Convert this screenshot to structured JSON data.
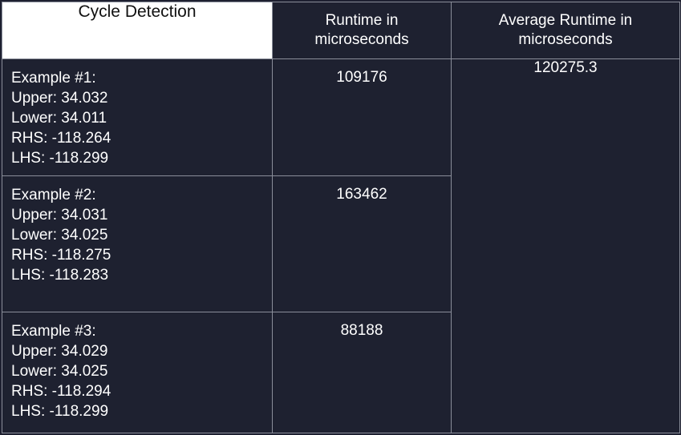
{
  "header": {
    "title": "Cycle Detection",
    "runtime_line1": "Runtime in",
    "runtime_line2": "microseconds",
    "average_line1": "Average Runtime in",
    "average_line2": "microseconds"
  },
  "examples": [
    {
      "label": "Example #1:",
      "upper": "Upper: 34.032",
      "lower": "Lower: 34.011",
      "rhs": "RHS: -118.264",
      "lhs": "LHS: -118.299",
      "runtime": "109176"
    },
    {
      "label": "Example #2:",
      "upper": "Upper: 34.031",
      "lower": "Lower: 34.025",
      "rhs": "RHS: -118.275",
      "lhs": "LHS: -118.283",
      "runtime": "163462"
    },
    {
      "label": "Example #3:",
      "upper": "Upper: 34.029",
      "lower": "Lower: 34.025",
      "rhs": "RHS: -118.294",
      "lhs": "LHS: -118.299",
      "runtime": "88188"
    }
  ],
  "average_runtime": "120275.3",
  "colors": {
    "background": "#1e2130",
    "header_title_bg": "#ffffff",
    "border": "#8a8e9a",
    "text": "#ffffff"
  }
}
